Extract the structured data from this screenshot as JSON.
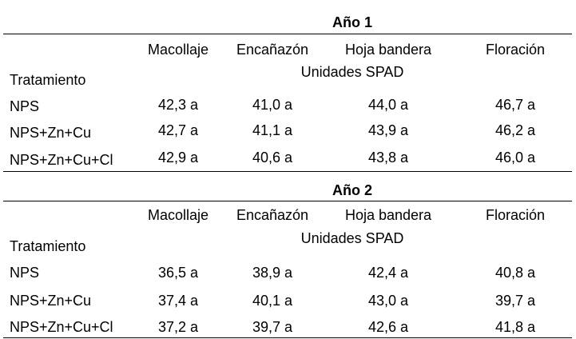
{
  "years": [
    {
      "title": "Año 1",
      "stages": [
        "Macollaje",
        "Encañazón",
        "Hoja bandera",
        "Floración"
      ],
      "unit": "Unidades SPAD",
      "row_header": "Tratamiento",
      "rows": [
        {
          "treatment": "NPS",
          "values": [
            "42,3 a",
            "41,0 a",
            "44,0 a",
            "46,7 a"
          ]
        },
        {
          "treatment": "NPS+Zn+Cu",
          "values": [
            "42,7 a",
            "41,1 a",
            "43,9 a",
            "46,2 a"
          ]
        },
        {
          "treatment": "NPS+Zn+Cu+Cl",
          "values": [
            "42,9 a",
            "40,6 a",
            "43,8 a",
            "46,0 a"
          ]
        }
      ]
    },
    {
      "title": "Año 2",
      "stages": [
        "Macollaje",
        "Encañazón",
        "Hoja bandera",
        "Floración"
      ],
      "unit": "Unidades SPAD",
      "row_header": "Tratamiento",
      "rows": [
        {
          "treatment": "NPS",
          "values": [
            "36,5 a",
            "38,9 a",
            "42,4 a",
            "40,8 a"
          ]
        },
        {
          "treatment": "NPS+Zn+Cu",
          "values": [
            "37,4 a",
            "40,1 a",
            "43,0 a",
            "39,7 a"
          ]
        },
        {
          "treatment": "NPS+Zn+Cu+Cl",
          "values": [
            "37,2 a",
            "39,7 a",
            "42,6 a",
            "41,8 a"
          ]
        }
      ]
    }
  ]
}
